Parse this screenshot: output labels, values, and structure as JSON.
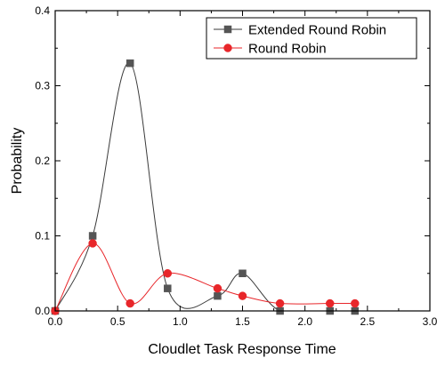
{
  "chart_data": {
    "type": "line",
    "xlabel": "Cloudlet Task Response Time",
    "ylabel": "Probability",
    "xlim": [
      0.0,
      3.0
    ],
    "ylim": [
      0.0,
      0.4
    ],
    "x_ticks": [
      0.0,
      0.5,
      1.0,
      1.5,
      2.0,
      2.5,
      3.0
    ],
    "x_tick_labels": [
      "0.0",
      "0.5",
      "1.0",
      "1.5",
      "2.0",
      "2.5",
      "3.0"
    ],
    "y_ticks": [
      0.0,
      0.1,
      0.2,
      0.3,
      0.4
    ],
    "y_tick_labels": [
      "0.0",
      "0.1",
      "0.2",
      "0.3",
      "0.4"
    ],
    "legend_position": "top-right",
    "grid": false,
    "series": [
      {
        "name": "Extended Round Robin",
        "color": "#3a3a3a",
        "marker": "square",
        "x": [
          0.0,
          0.3,
          0.6,
          0.9,
          1.3,
          1.5,
          1.8,
          2.2,
          2.4
        ],
        "values": [
          0.0,
          0.1,
          0.33,
          0.03,
          0.02,
          0.05,
          0.0,
          0.0,
          0.0
        ]
      },
      {
        "name": "Round Robin",
        "color": "#e8262a",
        "marker": "circle",
        "x": [
          0.0,
          0.3,
          0.6,
          0.9,
          1.3,
          1.5,
          1.8,
          2.2,
          2.4
        ],
        "values": [
          0.0,
          0.09,
          0.01,
          0.05,
          0.03,
          0.02,
          0.01,
          0.01,
          0.01
        ]
      }
    ]
  }
}
